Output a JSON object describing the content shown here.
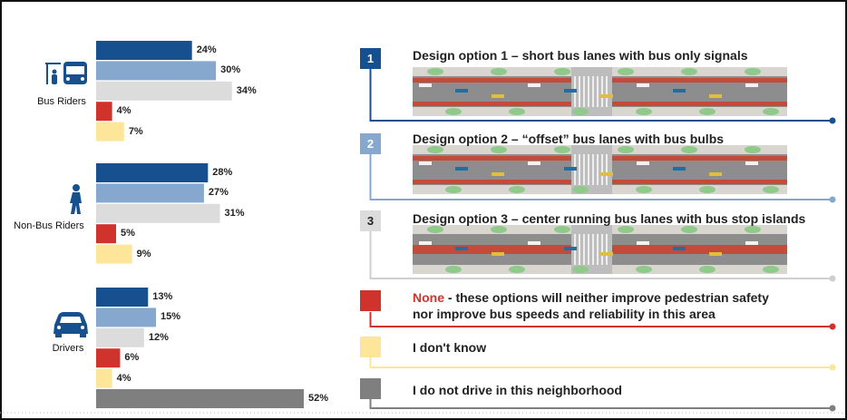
{
  "chart_data": {
    "type": "bar",
    "orientation": "horizontal",
    "unit": "%",
    "xlim": [
      0,
      55
    ],
    "groups": [
      {
        "label": "Bus Riders",
        "icon": "bus-stop-icon",
        "values": [
          24,
          30,
          34,
          4,
          7
        ]
      },
      {
        "label": "Non-Bus Riders",
        "icon": "pedestrian-icon",
        "values": [
          28,
          27,
          31,
          5,
          9
        ]
      },
      {
        "label": "Drivers",
        "icon": "car-icon",
        "values": [
          13,
          15,
          12,
          6,
          4,
          52
        ]
      }
    ],
    "data_labels": [
      [
        "24%",
        "30%",
        "34%",
        "4%",
        "7%"
      ],
      [
        "28%",
        "27%",
        "31%",
        "5%",
        "9%"
      ],
      [
        "13%",
        "15%",
        "12%",
        "6%",
        "4%",
        "52%"
      ]
    ],
    "legend": [
      {
        "badge": "1",
        "label": "Design option 1 – short bus lanes with bus only signals",
        "color": "#17508f",
        "has_image": true
      },
      {
        "badge": "2",
        "label": "Design option 2 – “offset” bus lanes with bus bulbs",
        "color": "#86a8cf",
        "has_image": true
      },
      {
        "badge": "3",
        "label": "Design option 3 – center running bus lanes with bus stop islands",
        "color": "#dcdcdc",
        "has_image": true
      },
      {
        "badge": "",
        "label_highlight": "None",
        "label": " - these options will neither improve pedestrian safety",
        "label_line2": "nor improve bus speeds and reliability in this area",
        "color": "#d0322c"
      },
      {
        "badge": "",
        "label": "I don't know",
        "color": "#fde59a"
      },
      {
        "badge": "",
        "label": "I do not drive in this neighborhood",
        "color": "#7f7f7f"
      }
    ],
    "legend_placement": "right",
    "grid": false
  }
}
